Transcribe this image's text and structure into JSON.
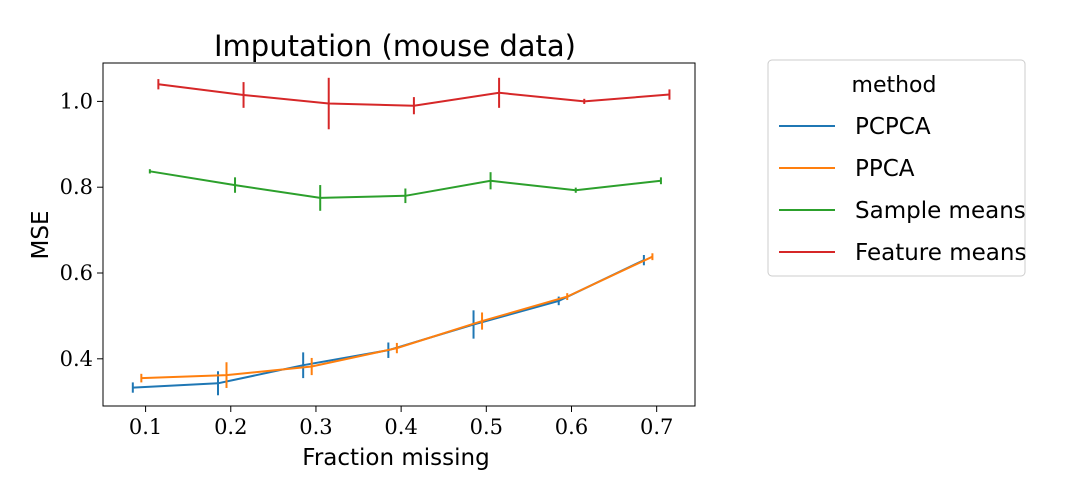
{
  "chart_data": {
    "type": "line",
    "title": "Imputation (mouse data)",
    "xlabel": "Fraction missing",
    "ylabel": "MSE",
    "xlim": [
      0.05,
      0.745
    ],
    "ylim": [
      0.29,
      1.0895
    ],
    "xticks": [
      0.1,
      0.2,
      0.3,
      0.4,
      0.5,
      0.6,
      0.7
    ],
    "xtick_labels": [
      "0.1",
      "0.2",
      "0.3",
      "0.4",
      "0.5",
      "0.6",
      "0.7"
    ],
    "yticks": [
      0.4,
      0.6,
      0.8,
      1.0
    ],
    "ytick_labels": [
      "0.4",
      "0.6",
      "0.8",
      "1.0"
    ],
    "grid": false,
    "legend": {
      "title": "method",
      "placement": "outside-right"
    },
    "series": [
      {
        "name": "PCPCA",
        "color": "#1f77b4",
        "x": [
          0.085,
          0.185,
          0.285,
          0.385,
          0.485,
          0.585,
          0.685
        ],
        "y": [
          0.333,
          0.343,
          0.385,
          0.42,
          0.48,
          0.535,
          0.63
        ],
        "err": [
          0.012,
          0.028,
          0.03,
          0.018,
          0.033,
          0.01,
          0.012
        ]
      },
      {
        "name": "PPCA",
        "color": "#ff7f0e",
        "x": [
          0.095,
          0.195,
          0.295,
          0.395,
          0.495,
          0.595,
          0.695
        ],
        "y": [
          0.355,
          0.362,
          0.382,
          0.425,
          0.488,
          0.545,
          0.638
        ],
        "err": [
          0.01,
          0.03,
          0.02,
          0.012,
          0.02,
          0.008,
          0.008
        ]
      },
      {
        "name": "Sample means",
        "color": "#2ca02c",
        "x": [
          0.105,
          0.205,
          0.305,
          0.405,
          0.505,
          0.605,
          0.705
        ],
        "y": [
          0.837,
          0.805,
          0.775,
          0.78,
          0.815,
          0.793,
          0.815
        ],
        "err": [
          0.005,
          0.018,
          0.03,
          0.017,
          0.02,
          0.006,
          0.008
        ]
      },
      {
        "name": "Feature means",
        "color": "#d62728",
        "x": [
          0.115,
          0.215,
          0.315,
          0.415,
          0.515,
          0.615,
          0.715
        ],
        "y": [
          1.04,
          1.015,
          0.995,
          0.99,
          1.02,
          1.0,
          1.016
        ],
        "err": [
          0.012,
          0.03,
          0.06,
          0.02,
          0.035,
          0.006,
          0.012
        ]
      }
    ]
  }
}
